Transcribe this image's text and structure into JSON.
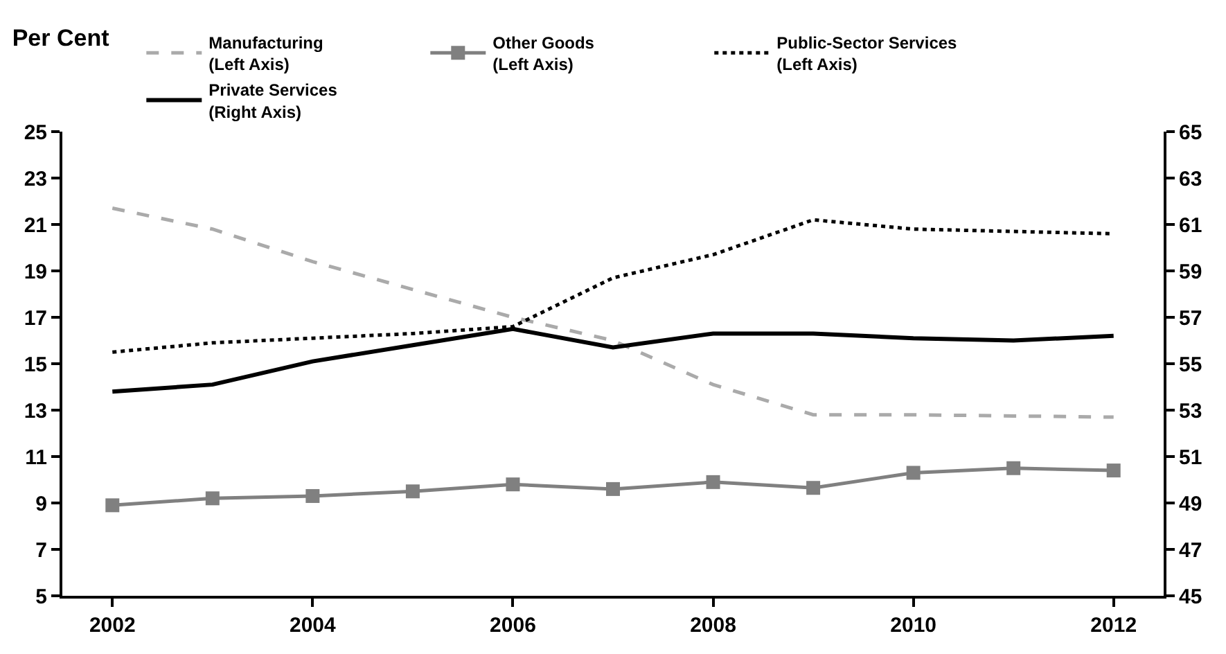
{
  "chart_data": {
    "type": "line",
    "title": "Per Cent",
    "x": [
      2002,
      2003,
      2004,
      2005,
      2006,
      2007,
      2008,
      2009,
      2010,
      2011,
      2012
    ],
    "xlim": [
      2001.5,
      2012.5
    ],
    "xticks": [
      2002,
      2004,
      2006,
      2008,
      2010,
      2012
    ],
    "ylim": [
      5,
      25
    ],
    "yticks": [
      5,
      7,
      9,
      11,
      13,
      15,
      17,
      19,
      21,
      23,
      25
    ],
    "y2lim": [
      45,
      65
    ],
    "y2ticks": [
      45,
      47,
      49,
      51,
      53,
      55,
      57,
      59,
      61,
      63,
      65
    ],
    "legend": "top",
    "series": [
      {
        "name": "Manufacturing\n(Left Axis)",
        "color": "#aaaaaa",
        "line_style": "dashed",
        "marker": "none",
        "values": [
          21.7,
          20.8,
          19.4,
          18.2,
          17.0,
          16.0,
          14.1,
          12.8,
          12.8,
          12.75,
          12.7
        ]
      },
      {
        "name": "Other Goods\n(Left Axis)",
        "color": "#808080",
        "line_style": "solid",
        "marker": "square",
        "values": [
          8.9,
          9.2,
          9.3,
          9.5,
          9.8,
          9.6,
          9.9,
          9.65,
          10.3,
          10.5,
          10.4
        ]
      },
      {
        "name": "Public-Sector Services\n(Left Axis)",
        "color": "#000000",
        "line_style": "dotted",
        "marker": "none",
        "values": [
          15.5,
          15.9,
          16.1,
          16.3,
          16.6,
          18.7,
          19.7,
          21.2,
          20.8,
          20.7,
          20.6
        ]
      },
      {
        "name": "Private Services\n(Right Axis)",
        "color": "#000000",
        "line_style": "solid",
        "marker": "none",
        "axis": "y2",
        "values": [
          53.8,
          54.1,
          55.1,
          55.8,
          56.5,
          55.7,
          56.3,
          56.3,
          56.1,
          56.0,
          56.2
        ]
      }
    ]
  }
}
